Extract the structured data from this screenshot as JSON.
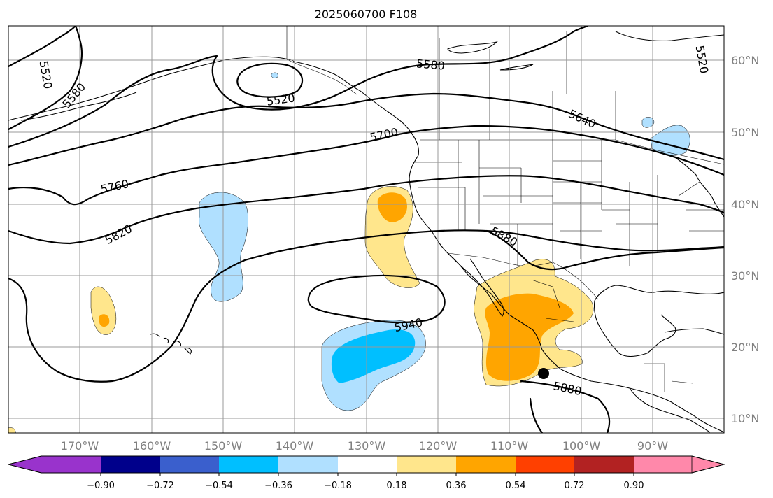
{
  "title": "2025060700 F108",
  "lon_labels": [
    "170°W",
    "160°W",
    "150°W",
    "140°W",
    "130°W",
    "120°W",
    "110°W",
    "100°W",
    "90°W"
  ],
  "lat_labels": [
    "60°N",
    "50°N",
    "40°N",
    "30°N",
    "20°N",
    "10°N"
  ],
  "contour_labels": [
    "5520",
    "5580",
    "5520",
    "5520",
    "5580",
    "5640",
    "5700",
    "5760",
    "5820",
    "5880",
    "5940",
    "5880"
  ],
  "colorbar": {
    "tick_labels": [
      "−0.90",
      "−0.72",
      "−0.54",
      "−0.36",
      "−0.18",
      "0.18",
      "0.36",
      "0.54",
      "0.72",
      "0.90"
    ],
    "colors": [
      "#9933cc",
      "#00008b",
      "#3a5fcd",
      "#00bfff",
      "#b0e0ff",
      "#ffffff",
      "#ffe68c",
      "#ffa500",
      "#ff4000",
      "#b22222",
      "#ff88aa"
    ]
  },
  "shading_colors": {
    "neg_light": "#b0e0ff",
    "neg_mid": "#00bfff",
    "pos_light": "#ffe68c",
    "pos_mid": "#ffa500"
  },
  "marker": "storm-center-dot"
}
